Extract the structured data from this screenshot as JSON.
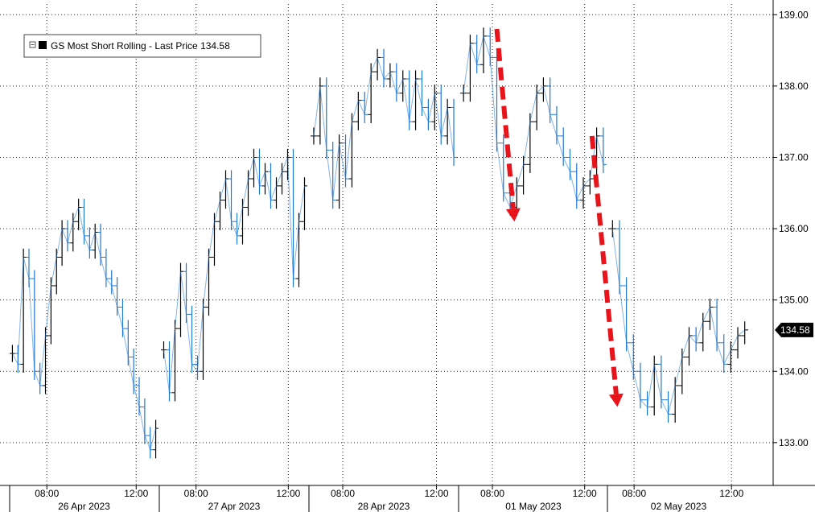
{
  "chart_data": {
    "type": "line",
    "title": "",
    "xlabel": "",
    "ylabel": "",
    "ylim": [
      132.4,
      139.15
    ],
    "y_ticks": [
      {
        "value": 133.0,
        "label": "133.00"
      },
      {
        "value": 134.0,
        "label": "134.00"
      },
      {
        "value": 135.0,
        "label": "135.00"
      },
      {
        "value": 136.0,
        "label": "136.00"
      },
      {
        "value": 137.0,
        "label": "137.00"
      },
      {
        "value": 138.0,
        "label": "138.00"
      },
      {
        "value": 139.0,
        "label": "139.00"
      }
    ],
    "x_ticks": [
      {
        "day": 0,
        "label": "08:00"
      },
      {
        "day": 0,
        "label": "12:00"
      },
      {
        "day": 1,
        "label": "08:00"
      },
      {
        "day": 1,
        "label": "12:00"
      },
      {
        "day": 2,
        "label": "08:00"
      },
      {
        "day": 2,
        "label": "12:00"
      },
      {
        "day": 3,
        "label": "08:00"
      },
      {
        "day": 3,
        "label": "12:00"
      },
      {
        "day": 4,
        "label": "08:00"
      },
      {
        "day": 4,
        "label": "12:00"
      }
    ],
    "days": [
      "26 Apr 2023",
      "27 Apr 2023",
      "28 Apr 2023",
      "01 May 2023",
      "02 May 2023"
    ],
    "legend": {
      "label": "GS Most Short Rolling - Last Price 134.58",
      "position": "top-left"
    },
    "last_price": {
      "value": 134.58,
      "label": "134.58"
    },
    "grid": true,
    "colors": {
      "series_black": "#000000",
      "series_blue": "#1f77d4",
      "arrow": "#e8141c",
      "last_bg": "#000000"
    },
    "series": [
      {
        "day": "26 Apr 2023",
        "values": [
          134.25,
          134.1,
          135.6,
          135.3,
          134.0,
          133.8,
          134.5,
          135.2,
          135.6,
          136.0,
          135.8,
          136.1,
          136.3,
          135.9,
          135.7,
          135.95,
          135.6,
          135.3,
          135.2,
          134.9,
          134.6,
          134.2,
          133.8,
          133.5,
          133.1,
          132.9,
          133.2
        ]
      },
      {
        "day": "27 Apr 2023",
        "values": [
          134.3,
          133.7,
          134.6,
          135.4,
          134.8,
          134.1,
          134.0,
          134.9,
          135.6,
          136.1,
          136.4,
          136.7,
          136.1,
          135.9,
          136.3,
          136.7,
          137.0,
          136.6,
          136.8,
          136.4,
          136.6,
          136.8,
          137.0,
          135.3,
          136.1,
          136.6
        ]
      },
      {
        "day": "28 Apr 2023",
        "values": [
          137.3,
          138.0,
          137.1,
          136.4,
          137.2,
          136.7,
          137.5,
          137.8,
          137.6,
          138.2,
          138.4,
          138.1,
          138.2,
          137.9,
          138.1,
          137.5,
          138.1,
          137.7,
          137.5,
          137.9,
          137.3,
          137.7,
          137.0
        ]
      },
      {
        "day": "01 May 2023",
        "values": [
          137.9,
          138.6,
          138.3,
          138.7,
          138.4,
          137.2,
          136.5,
          136.3,
          136.6,
          136.9,
          137.5,
          137.9,
          138.0,
          137.6,
          137.3,
          137.0,
          136.8,
          136.4,
          136.6,
          136.7,
          137.3,
          136.9
        ]
      },
      {
        "day": "02 May 2023",
        "values": [
          136.0,
          135.2,
          134.4,
          134.0,
          133.6,
          133.5,
          134.1,
          133.6,
          133.4,
          133.8,
          134.2,
          134.5,
          134.4,
          134.7,
          134.9,
          134.4,
          134.1,
          134.3,
          134.5,
          134.58
        ]
      }
    ],
    "annotations": [
      {
        "type": "arrow",
        "from": {
          "day": 3,
          "frac": 0.25,
          "y": 138.8
        },
        "to": {
          "day": 3,
          "frac": 0.37,
          "y": 136.1
        }
      },
      {
        "type": "arrow",
        "from": {
          "day": 3,
          "frac": 0.9,
          "y": 137.3
        },
        "to": {
          "day": 4,
          "frac": 0.06,
          "y": 133.5
        }
      }
    ]
  }
}
